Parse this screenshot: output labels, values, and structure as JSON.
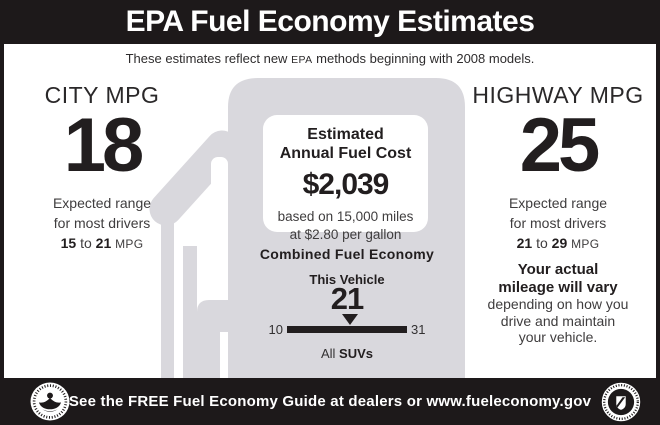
{
  "colors": {
    "ink": "#221e1f",
    "bar_black": "#1d191a",
    "pump_gray": "#d9d8dd",
    "muted": "#3f3d3e",
    "white": "#ffffff"
  },
  "header": {
    "title": "EPA Fuel Economy Estimates"
  },
  "notice": {
    "before_epa": "These estimates reflect new",
    "epa": "EPA",
    "after_epa": "methods beginning with 2008 models."
  },
  "city": {
    "heading": "CITY MPG",
    "mpg": "18",
    "range_line1": "Expected range",
    "range_line2": "for most drivers",
    "range_low": "15",
    "range_conj": "to",
    "range_high": "21",
    "range_unit": "MPG"
  },
  "highway": {
    "heading": "HIGHWAY MPG",
    "mpg": "25",
    "range_line1": "Expected range",
    "range_line2": "for most drivers",
    "range_low": "21",
    "range_conj": "to",
    "range_high": "29",
    "range_unit": "MPG"
  },
  "annual_fuel_cost": {
    "title_line1": "Estimated",
    "title_line2": "Annual Fuel Cost",
    "amount": "$2,039",
    "basis_line1": "based on 15,000 miles",
    "basis_line2": "at $2.80 per gallon"
  },
  "combined": {
    "heading": "Combined Fuel Economy",
    "vehicle_label": "This Vehicle",
    "value": "21",
    "scale_min": "10",
    "scale_max": "31",
    "class_prefix": "All",
    "class_name": "SUVs"
  },
  "variance_note": {
    "bold_line1": "Your actual",
    "bold_line2": "mileage will vary",
    "line3": "depending on how you",
    "line4": "drive and maintain",
    "line5": "your vehicle."
  },
  "footer": {
    "message": "See the FREE Fuel Economy Guide at dealers or www.fueleconomy.gov"
  }
}
